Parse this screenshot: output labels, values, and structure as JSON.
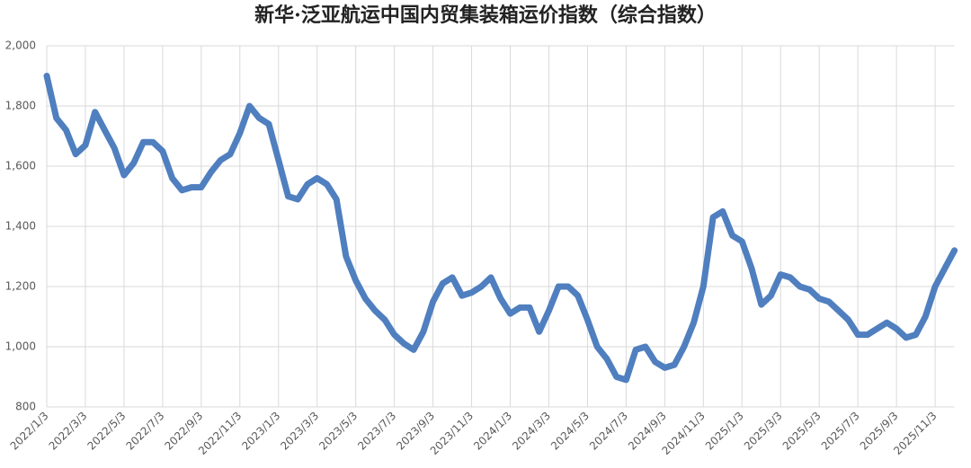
{
  "chart_data": {
    "type": "line",
    "title": "新华·泛亚航运中国内贸集装箱运价指数（综合指数）",
    "categories": [
      "2022/1/3",
      null,
      null,
      null,
      "2022/3/3",
      null,
      null,
      null,
      "2022/5/3",
      null,
      null,
      null,
      "2022/7/3",
      null,
      null,
      null,
      "2022/9/3",
      null,
      null,
      null,
      "2022/11/3",
      null,
      null,
      null,
      "2023/1/3",
      null,
      null,
      null,
      "2023/3/3",
      null,
      null,
      null,
      "2023/5/3",
      null,
      null,
      null,
      "2023/7/3",
      null,
      null,
      null,
      "2023/9/3",
      null,
      null,
      null,
      "2023/11/3",
      null,
      null,
      null,
      "2024/1/3",
      null,
      null,
      null,
      "2024/3/3",
      null,
      null,
      null,
      "2024/5/3",
      null,
      null,
      null,
      "2024/7/3",
      null,
      null,
      null,
      "2024/9/3",
      null,
      null,
      null,
      "2024/11/3",
      null,
      null,
      null,
      "2025/1/3",
      null,
      null,
      null,
      "2025/3/3",
      null,
      null,
      null,
      "2025/5/3",
      null,
      null,
      null,
      "2025/7/3",
      null,
      null,
      null,
      "2025/9/3",
      null,
      null,
      null,
      "2025/11/3",
      null,
      null
    ],
    "series": [
      {
        "name": "综合指数",
        "color": "#4f7fbf",
        "values": [
          1900,
          1760,
          1720,
          1640,
          1670,
          1780,
          1720,
          1660,
          1570,
          1610,
          1680,
          1680,
          1650,
          1560,
          1520,
          1530,
          1530,
          1580,
          1620,
          1640,
          1710,
          1800,
          1760,
          1740,
          1620,
          1500,
          1490,
          1540,
          1560,
          1540,
          1490,
          1300,
          1220,
          1160,
          1120,
          1090,
          1040,
          1010,
          990,
          1050,
          1150,
          1210,
          1230,
          1170,
          1180,
          1200,
          1230,
          1160,
          1110,
          1130,
          1130,
          1050,
          1120,
          1200,
          1200,
          1170,
          1090,
          1000,
          960,
          900,
          890,
          990,
          1000,
          950,
          930,
          940,
          1000,
          1080,
          1200,
          1430,
          1450,
          1370,
          1350,
          1260,
          1140,
          1170,
          1240,
          1230,
          1200,
          1190,
          1160,
          1150,
          1120,
          1090,
          1040,
          1040,
          1060,
          1080,
          1060,
          1030,
          1040,
          1100,
          1200,
          1260,
          1320
        ]
      }
    ],
    "ylim": [
      800,
      2000
    ],
    "yticks": [
      800,
      {
        "value": 1000,
        "label": "1,000"
      },
      {
        "value": 1200,
        "label": "1,200"
      },
      {
        "value": 1400,
        "label": "1,400"
      },
      {
        "value": 1600,
        "label": "1,600"
      },
      {
        "value": 1800,
        "label": "1,800"
      },
      {
        "value": 2000,
        "label": "2,000"
      }
    ],
    "grid": true
  }
}
